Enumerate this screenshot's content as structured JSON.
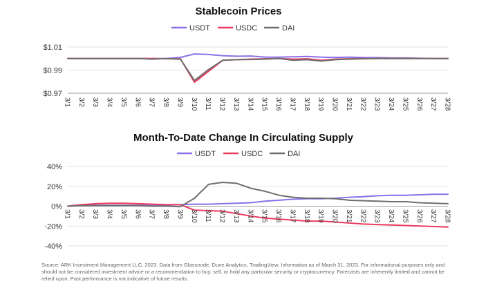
{
  "chart_data": [
    {
      "type": "line",
      "title": "Stablecoin Prices",
      "xlabel": "",
      "ylabel": "",
      "categories": [
        "3/1",
        "3/2",
        "3/3",
        "3/4",
        "3/5",
        "3/6",
        "3/7",
        "3/8",
        "3/9",
        "3/10",
        "3/11",
        "3/12",
        "3/13",
        "3/14",
        "3/15",
        "3/16",
        "3/17",
        "3/18",
        "3/19",
        "3/20",
        "3/21",
        "3/22",
        "3/23",
        "3/24",
        "3/25",
        "3/26",
        "3/27",
        "3/28"
      ],
      "ylim": [
        0.97,
        1.01
      ],
      "yticks": [
        0.97,
        0.99,
        1.01
      ],
      "ytick_labels": [
        "$0.97",
        "$0.99",
        "$1.01"
      ],
      "legend": "top-center",
      "series": [
        {
          "name": "USDT",
          "color": "#8a6fe8",
          "values": [
            1.0,
            1.0,
            1.0,
            1.0,
            1.0,
            1.0,
            1.0,
            1.0,
            1.001,
            1.004,
            1.0035,
            1.0025,
            1.002,
            1.0022,
            1.0012,
            1.0012,
            1.0015,
            1.0018,
            1.0012,
            1.001,
            1.0012,
            1.0008,
            1.0008,
            1.0005,
            1.0005,
            1.0002,
            1.0,
            1.0
          ]
        },
        {
          "name": "USDC",
          "color": "#ec3a5e",
          "values": [
            1.0,
            1.0,
            1.0,
            1.0,
            1.0,
            1.0,
            1.0,
            0.9998,
            0.9998,
            0.9795,
            0.989,
            0.9985,
            0.999,
            0.9995,
            0.9998,
            1.0,
            0.9995,
            0.9998,
            0.9985,
            0.9995,
            0.9998,
            1.0,
            1.0,
            1.0,
            1.0,
            1.0,
            1.0,
            1.0
          ]
        },
        {
          "name": "DAI",
          "color": "#6e6e6e",
          "values": [
            1.0,
            1.0,
            1.0,
            1.0,
            1.0,
            1.0,
            0.9995,
            1.0,
            0.9995,
            0.981,
            0.9905,
            0.9985,
            0.999,
            0.9992,
            0.9995,
            1.0,
            0.9985,
            0.999,
            0.9978,
            0.999,
            0.9995,
            0.9998,
            1.0,
            1.0,
            1.0,
            1.0,
            1.0,
            1.0
          ]
        }
      ]
    },
    {
      "type": "line",
      "title": "Month-To-Date Change In Circulating Supply",
      "xlabel": "",
      "ylabel": "",
      "categories": [
        "3/1",
        "3/2",
        "3/3",
        "3/4",
        "3/5",
        "3/6",
        "3/7",
        "3/8",
        "3/9",
        "3/10",
        "3/11",
        "3/12",
        "3/13",
        "3/14",
        "3/15",
        "3/16",
        "3/17",
        "3/18",
        "3/19",
        "3/20",
        "3/21",
        "3/22",
        "3/23",
        "3/24",
        "3/25",
        "3/26",
        "3/27",
        "3/28"
      ],
      "ylim": [
        -40,
        40
      ],
      "yticks": [
        -40,
        -20,
        0,
        20,
        40
      ],
      "ytick_labels": [
        "-40%",
        "-20%",
        "0%",
        "20%",
        "40%"
      ],
      "legend": "top-center",
      "series": [
        {
          "name": "USDT",
          "color": "#8a6fe8",
          "values": [
            0,
            1,
            1,
            1,
            1,
            1,
            1,
            1,
            1.5,
            2,
            2,
            2.5,
            3,
            3.5,
            5,
            6,
            7,
            7.5,
            7.5,
            8,
            9,
            9.5,
            10.5,
            11,
            11,
            11.5,
            12,
            12
          ]
        },
        {
          "name": "USDC",
          "color": "#ec3a5e",
          "values": [
            0,
            1.5,
            2.5,
            3,
            3,
            2.5,
            2,
            1.5,
            1.5,
            -4,
            -4.5,
            -5,
            -7.5,
            -10,
            -12,
            -13,
            -14,
            -15,
            -15,
            -16,
            -17,
            -18,
            -18.5,
            -19,
            -19.5,
            -20,
            -20.5,
            -21
          ]
        },
        {
          "name": "DAI",
          "color": "#6e6e6e",
          "values": [
            0,
            0.5,
            0.5,
            0.5,
            0.5,
            0.5,
            0,
            0,
            -0.5,
            8,
            22,
            24,
            23,
            18,
            15,
            11,
            9,
            8,
            8,
            7.5,
            6,
            5.5,
            5,
            4.5,
            4.5,
            3.5,
            3,
            2.5
          ]
        }
      ]
    }
  ],
  "footer": {
    "source_text": "Source: ARK Investment Management LLC, 2023. Data from Glassnode, Dune Analytics, TradingView. Information as of March 31, 2023. For informational purposes only and should not be considered investment advice or a recommendation to buy, sell, or hold any particular security or cryptocurrency. Forecasts are inherently limited and cannot be relied upon. Past performance is not indicative of future results."
  }
}
